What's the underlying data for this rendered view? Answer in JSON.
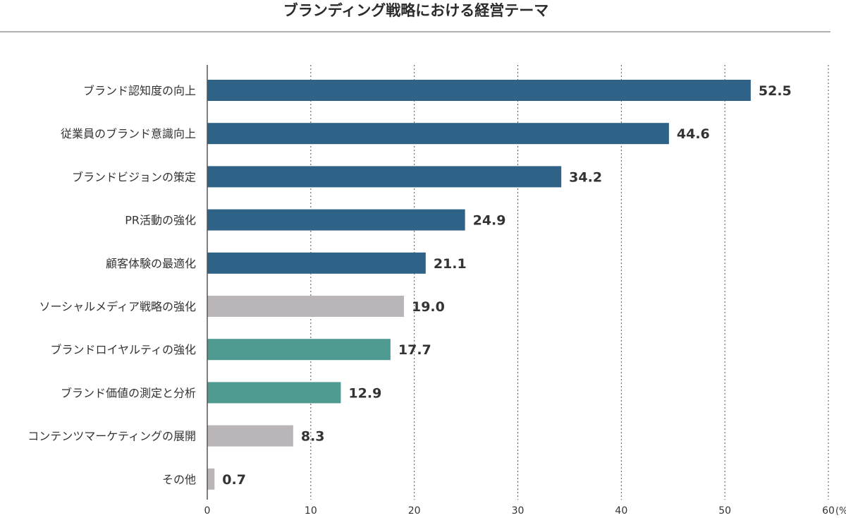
{
  "chart_data": {
    "type": "bar",
    "orientation": "horizontal",
    "title": "ブランディング戦略における経営テーマ",
    "unit": "(%)",
    "categories": [
      "ブランド認知度の向上",
      "従業員のブランド意識向上",
      "ブランドビジョンの策定",
      "PR活動の強化",
      "顧客体験の最適化",
      "ソーシャルメディア戦略の強化",
      "ブランドロイヤルティの強化",
      "ブランド価値の測定と分析",
      "コンテンツマーケティングの展開",
      "その他"
    ],
    "values": [
      52.5,
      44.6,
      34.2,
      24.9,
      21.1,
      19.0,
      17.7,
      12.9,
      8.3,
      0.7
    ],
    "value_labels": [
      "52.5",
      "44.6",
      "34.2",
      "24.9",
      "21.1",
      "19.0",
      "17.7",
      "12.9",
      "8.3",
      "0.7"
    ],
    "bar_colors": [
      "#2e6287",
      "#2e6287",
      "#2e6287",
      "#2e6287",
      "#2e6287",
      "#b9b5b8",
      "#4f9a91",
      "#4f9a91",
      "#b9b5b8",
      "#b9b5b8"
    ],
    "xlim": [
      0,
      60
    ],
    "xticks": [
      0,
      10,
      20,
      30,
      40,
      50,
      60
    ],
    "xtick_labels": [
      "0",
      "10",
      "20",
      "30",
      "40",
      "50",
      "60"
    ],
    "grid": "vertical-dotted",
    "legend": "none"
  }
}
